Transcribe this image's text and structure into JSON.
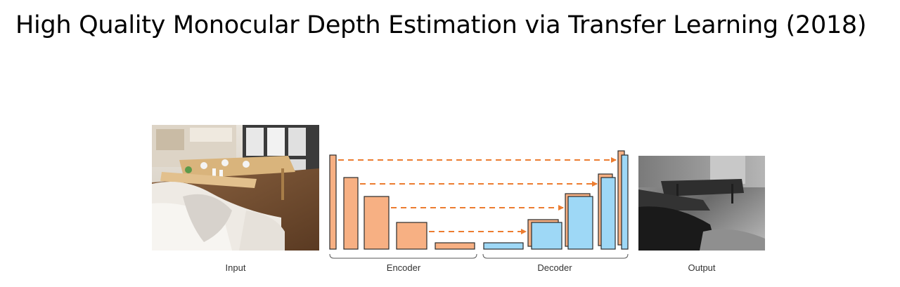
{
  "title": "High Quality Monocular Depth Estimation via Transfer Learning (2018)",
  "figure": {
    "labels": {
      "input": "Input",
      "encoder": "Encoder",
      "decoder": "Decoder",
      "output": "Output"
    },
    "colors": {
      "encoder_block": "#F7B083",
      "decoder_block": "#9ED8F6",
      "block_stroke": "#2b2b2b",
      "skip_arrow": "#EC7C30"
    }
  }
}
